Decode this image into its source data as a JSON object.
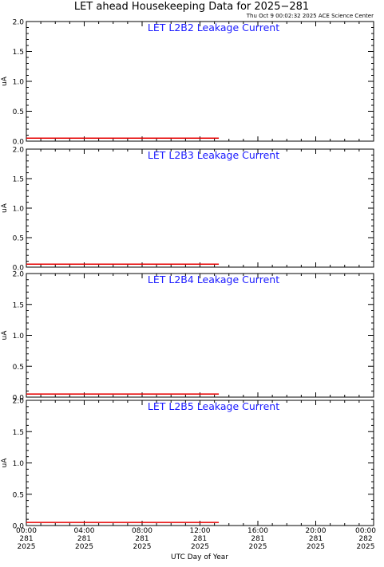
{
  "header": {
    "title": "LET ahead Housekeeping Data for 2025−281",
    "timestamp": "Thu Oct  9 00:02:32 2025 ACE Science Center"
  },
  "colors": {
    "background": "#ffffff",
    "axes": "#000000",
    "panel_title": "#1a1aff",
    "series": "#e60000"
  },
  "chart_data": [
    {
      "type": "line",
      "title": "LET L2B2 Leakage Current",
      "ylabel": "uA",
      "ylim": [
        0,
        2.0
      ],
      "yticks": [
        "0.0",
        "0.5",
        "1.0",
        "1.5",
        "2.0"
      ],
      "xlim": [
        0,
        24
      ],
      "series": [
        {
          "x": [
            0,
            13.3
          ],
          "y": [
            0.05,
            0.05
          ]
        }
      ]
    },
    {
      "type": "line",
      "title": "LET L2B3 Leakage Current",
      "ylabel": "uA",
      "ylim": [
        0,
        2.0
      ],
      "yticks": [
        "0.0",
        "0.5",
        "1.0",
        "1.5",
        "2.0"
      ],
      "xlim": [
        0,
        24
      ],
      "series": [
        {
          "x": [
            0,
            13.3
          ],
          "y": [
            0.05,
            0.05
          ]
        }
      ]
    },
    {
      "type": "line",
      "title": "LET L2B4 Leakage Current",
      "ylabel": "uA",
      "ylim": [
        0,
        2.0
      ],
      "yticks": [
        "0.0",
        "0.5",
        "1.0",
        "1.5",
        "2.0"
      ],
      "xlim": [
        0,
        24
      ],
      "series": [
        {
          "x": [
            0,
            13.3
          ],
          "y": [
            0.05,
            0.05
          ]
        }
      ]
    },
    {
      "type": "line",
      "title": "LET L2B5 Leakage Current",
      "ylabel": "uA",
      "ylim": [
        0,
        2.0
      ],
      "yticks": [
        "0.0",
        "0.5",
        "1.0",
        "1.5",
        "2.0"
      ],
      "xlim": [
        0,
        24
      ],
      "series": [
        {
          "x": [
            0,
            13.3
          ],
          "y": [
            0.05,
            0.05
          ]
        }
      ]
    }
  ],
  "x_axis": {
    "label": "UTC Day of Year",
    "ticks": [
      {
        "hour": 0,
        "time": "00:00",
        "doy": "281",
        "year": "2025"
      },
      {
        "hour": 4,
        "time": "04:00",
        "doy": "281",
        "year": "2025"
      },
      {
        "hour": 8,
        "time": "08:00",
        "doy": "281",
        "year": "2025"
      },
      {
        "hour": 12,
        "time": "12:00",
        "doy": "281",
        "year": "2025"
      },
      {
        "hour": 16,
        "time": "16:00",
        "doy": "281",
        "year": "2025"
      },
      {
        "hour": 20,
        "time": "20:00",
        "doy": "281",
        "year": "2025"
      },
      {
        "hour": 24,
        "time": "00:00",
        "doy": "282",
        "year": "2025"
      }
    ]
  }
}
